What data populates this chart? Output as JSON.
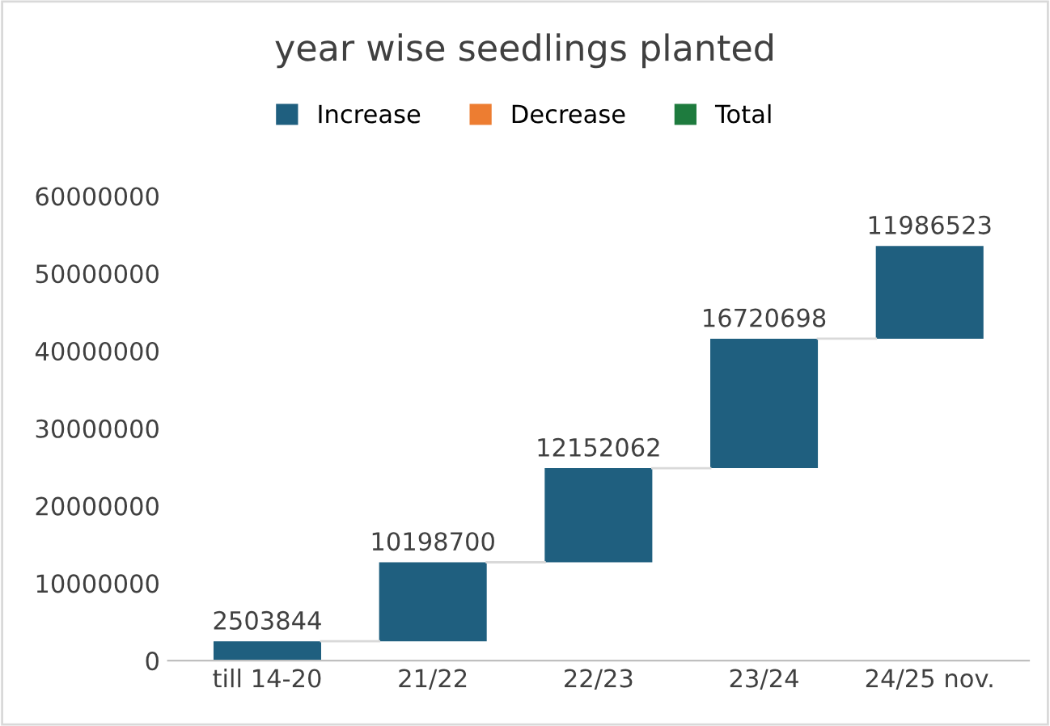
{
  "chart_data": {
    "type": "bar",
    "title": "year wise seedlings planted",
    "categories": [
      "till 14-20",
      "21/22",
      "22/23",
      "23/24",
      "24/25 nov."
    ],
    "series": [
      {
        "name": "Increase",
        "color": "#1f5f7f",
        "base": [
          0,
          2503844,
          12702544,
          24854606,
          41575304
        ],
        "values": [
          2503844,
          10198700,
          12152062,
          16720698,
          11986523
        ]
      },
      {
        "name": "Decrease",
        "color": "#ed7d31",
        "values": [
          null,
          null,
          null,
          null,
          null
        ]
      },
      {
        "name": "Total",
        "color": "#1e7b3e",
        "values": [
          null,
          null,
          null,
          null,
          null
        ]
      }
    ],
    "ylim": [
      0,
      60000000
    ],
    "yticks": [
      0,
      10000000,
      20000000,
      30000000,
      40000000,
      50000000,
      60000000
    ],
    "data_labels": true,
    "legend": "top",
    "grid": false
  }
}
